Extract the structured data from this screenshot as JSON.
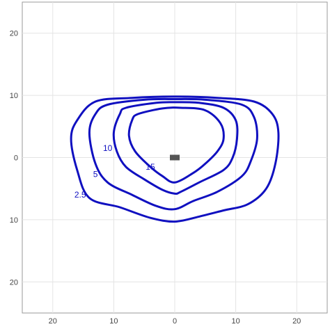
{
  "chart_data": {
    "type": "contour",
    "title": "",
    "xlabel": "",
    "ylabel": "",
    "xlim": [
      -25,
      25
    ],
    "ylim": [
      -25,
      25
    ],
    "grid": true,
    "x_ticks": [
      -20,
      -10,
      0,
      10,
      20
    ],
    "x_tick_labels": [
      "20",
      "10",
      "0",
      "10",
      "20"
    ],
    "y_ticks": [
      20,
      10,
      0,
      -10,
      -20
    ],
    "y_tick_labels": [
      "20",
      "10",
      "0",
      "10",
      "20"
    ],
    "source_marker": {
      "x": 0,
      "y": 0,
      "color": "#555555"
    },
    "contour_color": "#1010c0",
    "contours": [
      {
        "level": 2.5,
        "label": "2.5",
        "label_pos": [
          -15.5,
          -6
        ],
        "points": [
          [
            -13,
            9
          ],
          [
            -7,
            9.6
          ],
          [
            0,
            9.8
          ],
          [
            7,
            9.6
          ],
          [
            13,
            9
          ],
          [
            16,
            7
          ],
          [
            17,
            4
          ],
          [
            16.5,
            -1
          ],
          [
            15,
            -5
          ],
          [
            12,
            -7.5
          ],
          [
            8,
            -8.5
          ],
          [
            4,
            -9.5
          ],
          [
            0,
            -10.3
          ],
          [
            -4,
            -9.7
          ],
          [
            -9,
            -8
          ],
          [
            -14,
            -6.5
          ],
          [
            -16,
            -2
          ],
          [
            -17,
            3
          ],
          [
            -16,
            6
          ]
        ]
      },
      {
        "level": 5,
        "label": "5",
        "label_pos": [
          -13,
          -2.7
        ],
        "points": [
          [
            -11,
            8.5
          ],
          [
            -5,
            9.3
          ],
          [
            0,
            9.4
          ],
          [
            5,
            9.3
          ],
          [
            11,
            8.5
          ],
          [
            13,
            6.5
          ],
          [
            13.5,
            3
          ],
          [
            12.5,
            -0.5
          ],
          [
            11,
            -3
          ],
          [
            7,
            -5.5
          ],
          [
            3,
            -7
          ],
          [
            0,
            -8.3
          ],
          [
            -3,
            -7.8
          ],
          [
            -7,
            -6
          ],
          [
            -11,
            -4
          ],
          [
            -13,
            -1
          ],
          [
            -14,
            4
          ],
          [
            -13,
            7
          ]
        ]
      },
      {
        "level": 10,
        "label": "10",
        "label_pos": [
          -11,
          1.5
        ],
        "points": [
          [
            -8,
            8
          ],
          [
            -3,
            8.8
          ],
          [
            0,
            8.9
          ],
          [
            4,
            8.8
          ],
          [
            8,
            8
          ],
          [
            10,
            6
          ],
          [
            10.2,
            3
          ],
          [
            9.5,
            0
          ],
          [
            8,
            -2
          ],
          [
            4,
            -4
          ],
          [
            1,
            -5.5
          ],
          [
            0,
            -5.8
          ],
          [
            -2,
            -5.2
          ],
          [
            -5,
            -3.5
          ],
          [
            -8,
            -1.5
          ],
          [
            -9.5,
            1
          ],
          [
            -10,
            4
          ],
          [
            -9,
            7
          ]
        ]
      },
      {
        "level": 15,
        "label": "15",
        "label_pos": [
          -4,
          -1.5
        ],
        "points": [
          [
            -6,
            7
          ],
          [
            -2,
            7.9
          ],
          [
            1,
            8
          ],
          [
            5,
            7.6
          ],
          [
            7.5,
            5.5
          ],
          [
            8,
            3
          ],
          [
            7,
            1
          ],
          [
            5,
            -1
          ],
          [
            3,
            -2.5
          ],
          [
            0,
            -4
          ],
          [
            -2,
            -3
          ],
          [
            -4,
            -1.5
          ],
          [
            -6.5,
            1
          ],
          [
            -7.5,
            3.5
          ],
          [
            -7,
            6
          ]
        ]
      }
    ]
  }
}
